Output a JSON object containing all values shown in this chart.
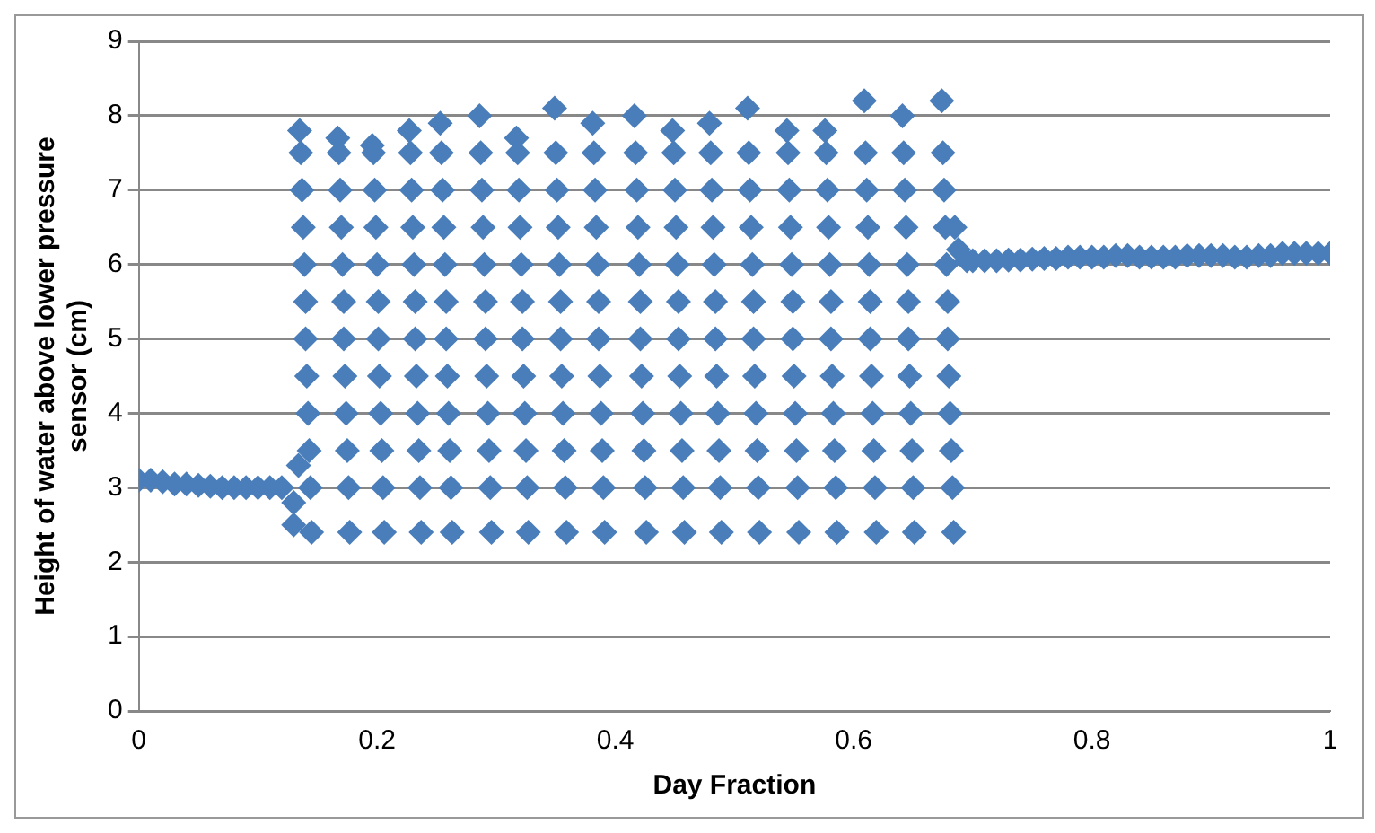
{
  "chart_data": {
    "type": "scatter",
    "xlabel": "Day Fraction",
    "ylabel": "Height of water above lower pressure\nsensor (cm)",
    "xlim": [
      0,
      1
    ],
    "xticks": [
      0,
      0.2,
      0.4,
      0.6,
      0.8,
      1
    ],
    "ylim": [
      0,
      9
    ],
    "yticks": [
      0,
      1,
      2,
      3,
      4,
      5,
      6,
      7,
      8,
      9
    ],
    "grid": "y",
    "legend": false,
    "marker": "diamond",
    "series": [
      {
        "color": "#4a7ebb",
        "x": [
          0,
          0.01,
          0.02,
          0.03,
          0.04,
          0.05,
          0.06,
          0.07,
          0.08,
          0.09,
          0.1,
          0.11,
          0.12,
          0.13,
          0.13,
          0.134,
          0.135,
          0.136,
          0.137,
          0.138,
          0.139,
          0.14,
          0.14,
          0.141,
          0.142,
          0.143,
          0.144,
          0.145,
          0.167,
          0.168,
          0.169,
          0.17,
          0.171,
          0.172,
          0.172,
          0.173,
          0.174,
          0.175,
          0.176,
          0.177,
          0.196,
          0.197,
          0.198,
          0.199,
          0.2,
          0.201,
          0.201,
          0.202,
          0.203,
          0.204,
          0.205,
          0.206,
          0.227,
          0.228,
          0.229,
          0.23,
          0.231,
          0.232,
          0.232,
          0.233,
          0.234,
          0.235,
          0.236,
          0.237,
          0.253,
          0.254,
          0.255,
          0.256,
          0.257,
          0.258,
          0.258,
          0.259,
          0.26,
          0.261,
          0.262,
          0.263,
          0.286,
          0.287,
          0.288,
          0.289,
          0.29,
          0.291,
          0.291,
          0.292,
          0.293,
          0.294,
          0.295,
          0.296,
          0.317,
          0.318,
          0.319,
          0.32,
          0.321,
          0.322,
          0.322,
          0.323,
          0.324,
          0.325,
          0.326,
          0.327,
          0.349,
          0.35,
          0.351,
          0.352,
          0.353,
          0.354,
          0.354,
          0.355,
          0.356,
          0.357,
          0.358,
          0.359,
          0.381,
          0.382,
          0.383,
          0.384,
          0.385,
          0.386,
          0.386,
          0.387,
          0.388,
          0.389,
          0.39,
          0.391,
          0.416,
          0.417,
          0.418,
          0.419,
          0.42,
          0.421,
          0.421,
          0.422,
          0.423,
          0.424,
          0.425,
          0.426,
          0.448,
          0.449,
          0.45,
          0.451,
          0.452,
          0.453,
          0.453,
          0.454,
          0.455,
          0.456,
          0.457,
          0.458,
          0.479,
          0.48,
          0.481,
          0.482,
          0.483,
          0.484,
          0.484,
          0.485,
          0.486,
          0.487,
          0.488,
          0.489,
          0.511,
          0.512,
          0.513,
          0.514,
          0.515,
          0.516,
          0.516,
          0.517,
          0.518,
          0.519,
          0.52,
          0.521,
          0.544,
          0.545,
          0.546,
          0.547,
          0.548,
          0.549,
          0.549,
          0.55,
          0.551,
          0.552,
          0.553,
          0.554,
          0.576,
          0.577,
          0.578,
          0.579,
          0.58,
          0.581,
          0.581,
          0.582,
          0.583,
          0.584,
          0.585,
          0.586,
          0.609,
          0.61,
          0.611,
          0.612,
          0.613,
          0.614,
          0.614,
          0.615,
          0.616,
          0.617,
          0.618,
          0.619,
          0.641,
          0.642,
          0.643,
          0.644,
          0.645,
          0.646,
          0.646,
          0.647,
          0.648,
          0.649,
          0.65,
          0.651,
          0.674,
          0.675,
          0.676,
          0.677,
          0.678,
          0.679,
          0.679,
          0.68,
          0.681,
          0.682,
          0.683,
          0.684,
          0.685,
          0.688,
          0.695,
          0.7,
          0.71,
          0.72,
          0.73,
          0.74,
          0.75,
          0.76,
          0.77,
          0.78,
          0.79,
          0.8,
          0.81,
          0.82,
          0.83,
          0.84,
          0.85,
          0.86,
          0.87,
          0.88,
          0.89,
          0.9,
          0.91,
          0.92,
          0.93,
          0.94,
          0.95,
          0.96,
          0.97,
          0.98,
          0.99,
          1
        ],
        "values": [
          3.1,
          3.1,
          3.08,
          3.05,
          3.05,
          3.03,
          3.02,
          3.0,
          3.0,
          3.0,
          3.0,
          3.0,
          3.0,
          2.5,
          2.8,
          3.3,
          7.8,
          7.5,
          7,
          6.5,
          6,
          5.5,
          5,
          4.5,
          4,
          3.5,
          3,
          2.4,
          7.7,
          7.5,
          7,
          6.5,
          6,
          5.5,
          5,
          4.5,
          4,
          3.5,
          3,
          2.4,
          7.6,
          7.5,
          7,
          6.5,
          6,
          5.5,
          5,
          4.5,
          4,
          3.5,
          3,
          2.4,
          7.8,
          7.5,
          7,
          6.5,
          6,
          5.5,
          5,
          4.5,
          4,
          3.5,
          3,
          2.4,
          7.9,
          7.5,
          7,
          6.5,
          6,
          5.5,
          5,
          4.5,
          4,
          3.5,
          3,
          2.4,
          8.0,
          7.5,
          7,
          6.5,
          6,
          5.5,
          5,
          4.5,
          4,
          3.5,
          3,
          2.4,
          7.7,
          7.5,
          7,
          6.5,
          6,
          5.5,
          5,
          4.5,
          4,
          3.5,
          3,
          2.4,
          8.1,
          7.5,
          7,
          6.5,
          6,
          5.5,
          5,
          4.5,
          4,
          3.5,
          3,
          2.4,
          7.9,
          7.5,
          7,
          6.5,
          6,
          5.5,
          5,
          4.5,
          4,
          3.5,
          3,
          2.4,
          8.0,
          7.5,
          7,
          6.5,
          6,
          5.5,
          5,
          4.5,
          4,
          3.5,
          3,
          2.4,
          7.8,
          7.5,
          7,
          6.5,
          6,
          5.5,
          5,
          4.5,
          4,
          3.5,
          3,
          2.4,
          7.9,
          7.5,
          7,
          6.5,
          6,
          5.5,
          5,
          4.5,
          4,
          3.5,
          3,
          2.4,
          8.1,
          7.5,
          7,
          6.5,
          6,
          5.5,
          5,
          4.5,
          4,
          3.5,
          3,
          2.4,
          7.8,
          7.5,
          7,
          6.5,
          6,
          5.5,
          5,
          4.5,
          4,
          3.5,
          3,
          2.4,
          7.8,
          7.5,
          7,
          6.5,
          6,
          5.5,
          5,
          4.5,
          4,
          3.5,
          3,
          2.4,
          8.2,
          7.5,
          7,
          6.5,
          6,
          5.5,
          5,
          4.5,
          4,
          3.5,
          3,
          2.4,
          8.0,
          7.5,
          7,
          6.5,
          6,
          5.5,
          5,
          4.5,
          4,
          3.5,
          3,
          2.4,
          8.2,
          7.5,
          7,
          6.5,
          6,
          5.5,
          5,
          4.5,
          4,
          3.5,
          3,
          2.4,
          6.5,
          6.2,
          6.05,
          6.05,
          6.05,
          6.05,
          6.06,
          6.06,
          6.07,
          6.08,
          6.08,
          6.1,
          6.1,
          6.1,
          6.1,
          6.12,
          6.12,
          6.1,
          6.1,
          6.1,
          6.1,
          6.12,
          6.12,
          6.12,
          6.12,
          6.1,
          6.1,
          6.12,
          6.12,
          6.15,
          6.15,
          6.15,
          6.15,
          6.15
        ]
      }
    ]
  }
}
